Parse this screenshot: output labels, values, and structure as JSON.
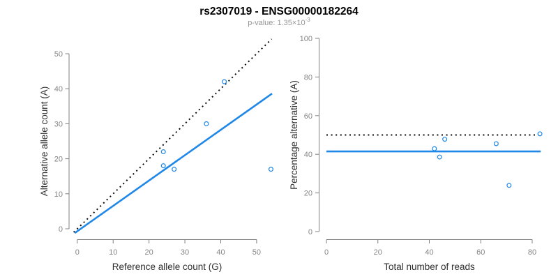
{
  "header": {
    "title": "rs2307019 - ENSG00000182264",
    "pvalue_label": "p-value: ",
    "pvalue_mantissa": "1.35×10",
    "pvalue_exponent": "-3"
  },
  "colors": {
    "accent_blue": "#1e87e8",
    "dotted_black": "#0a0a0a",
    "axis_gray": "#808080"
  },
  "chart_data": [
    {
      "type": "scatter",
      "name": "allele-count-panel",
      "xlabel": "Reference allele count (G)",
      "ylabel": "Alternative allele count (A)",
      "xticks": [
        0,
        10,
        20,
        30,
        40,
        50
      ],
      "yticks": [
        0,
        10,
        20,
        30,
        40,
        50
      ],
      "xlim": [
        -2,
        54.3
      ],
      "ylim": [
        -2,
        54.3
      ],
      "grid": false,
      "legend": "none",
      "points": [
        [
          24,
          22
        ],
        [
          24,
          18
        ],
        [
          27,
          17
        ],
        [
          36,
          30
        ],
        [
          41,
          42
        ],
        [
          54,
          17
        ]
      ],
      "lines": [
        {
          "name": "identity-line",
          "style": "dotted",
          "color": "black",
          "from": [
            -1,
            -1
          ],
          "to": [
            54.2,
            54.2
          ]
        },
        {
          "name": "allelic-ratio-line",
          "style": "solid",
          "color": "blue",
          "from": [
            -0.7,
            -1.2
          ],
          "to": [
            54.3,
            38.6
          ]
        }
      ]
    },
    {
      "type": "scatter",
      "name": "percentage-reads-panel",
      "xlabel": "Total number of reads",
      "ylabel": "Percentage alternative (A)",
      "xticks": [
        0,
        20,
        40,
        60,
        80
      ],
      "yticks": [
        0,
        20,
        40,
        60,
        80,
        100
      ],
      "xlim": [
        -3,
        86
      ],
      "ylim": [
        -4,
        104
      ],
      "grid": false,
      "legend": "none",
      "points": [
        [
          42,
          42.9
        ],
        [
          44,
          38.6
        ],
        [
          46,
          47.8
        ],
        [
          66,
          45.5
        ],
        [
          71,
          23.9
        ],
        [
          83,
          50.6
        ]
      ],
      "lines": [
        {
          "name": "fifty-percent-line",
          "style": "dotted",
          "color": "black",
          "from": [
            0,
            50
          ],
          "to": [
            82.5,
            50
          ]
        },
        {
          "name": "mean-percentage-line",
          "style": "solid",
          "color": "blue",
          "from": [
            0,
            41.5
          ],
          "to": [
            83.3,
            41.5
          ]
        }
      ]
    }
  ]
}
